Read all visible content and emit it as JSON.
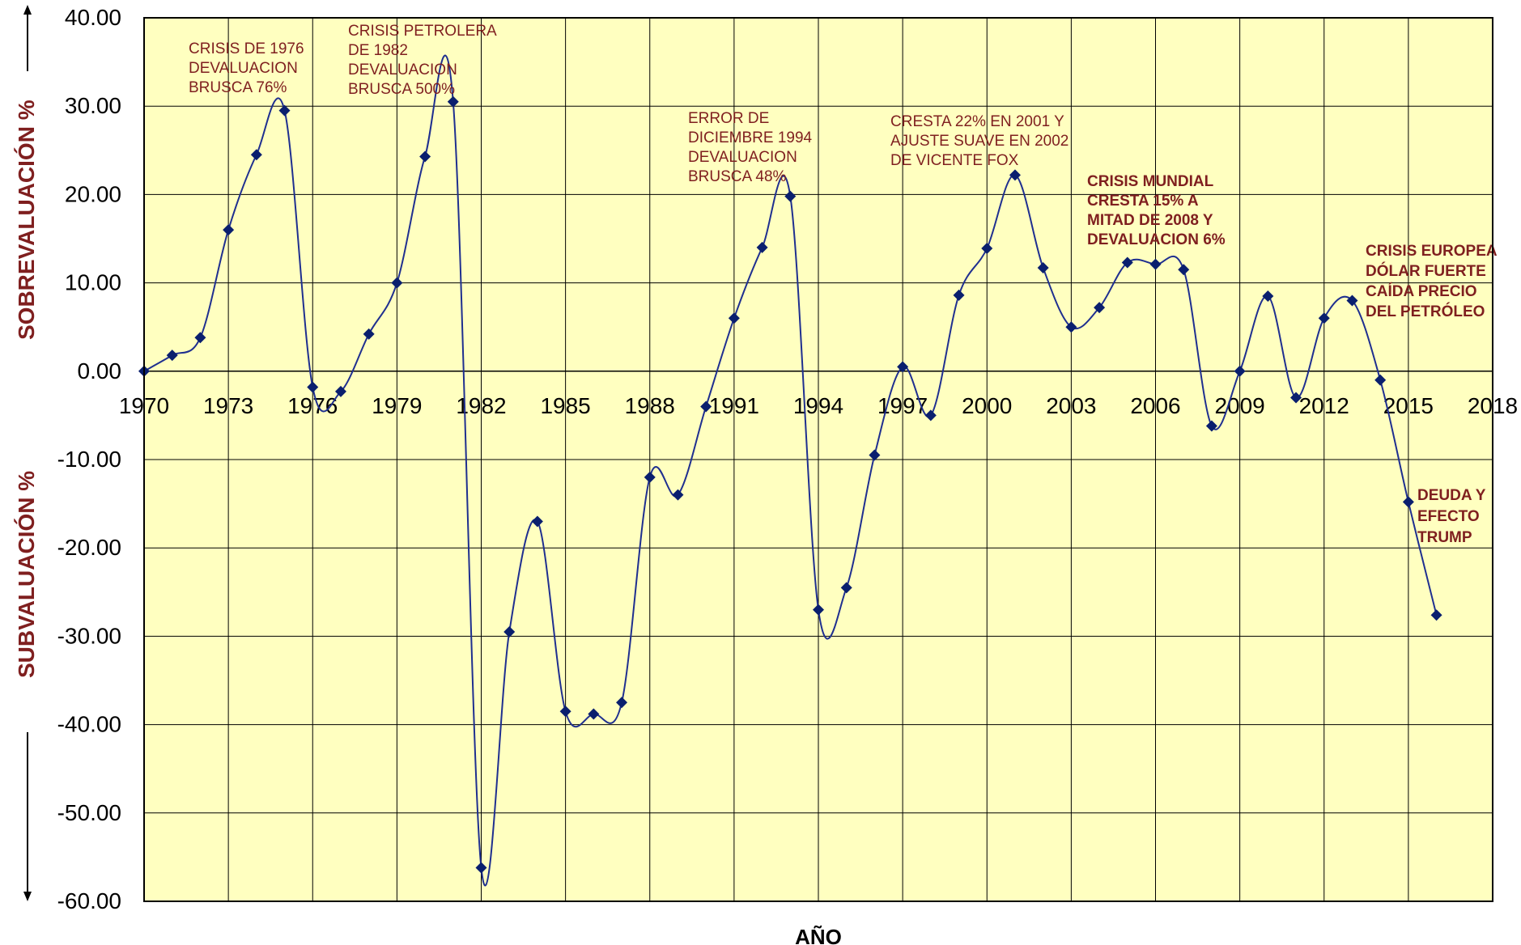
{
  "chart_data": {
    "type": "line",
    "xlabel": "AÑO",
    "ylabel_top": "SOBREVALUACIÓN %",
    "ylabel_bottom": "SUBVALUACIÓN %",
    "xlim": [
      1970,
      2018
    ],
    "ylim": [
      -60,
      40
    ],
    "x_ticks": [
      "1970",
      "1973",
      "1976",
      "1979",
      "1982",
      "1985",
      "1988",
      "1991",
      "1994",
      "1997",
      "2000",
      "2003",
      "2006",
      "2009",
      "2012",
      "2015",
      "2018"
    ],
    "y_ticks": [
      "40.00",
      "30.00",
      "20.00",
      "10.00",
      "0.00",
      "-10.00",
      "-20.00",
      "-30.00",
      "-40.00",
      "-50.00",
      "-60.00"
    ],
    "grid": true,
    "colors": {
      "plot_background": "#ffffc0",
      "line": "#1f2f8f",
      "marker": "#0a1f6e",
      "annotation": "#7f1f1f",
      "grid": "#000000"
    },
    "series": [
      {
        "x": [
          1970,
          1971,
          1972,
          1973,
          1974,
          1975,
          1976,
          1977,
          1978,
          1979,
          1980,
          1981,
          1982,
          1983,
          1984,
          1985,
          1986,
          1987,
          1988,
          1989,
          1990,
          1991,
          1992,
          1993,
          1994,
          1995,
          1996,
          1997,
          1998,
          1999,
          2000,
          2001,
          2002,
          2003,
          2004,
          2005,
          2006,
          2007,
          2008,
          2009,
          2010,
          2011,
          2012,
          2013,
          2014,
          2015,
          2016
        ],
        "values": [
          0.0,
          1.8,
          3.8,
          16.0,
          24.5,
          29.5,
          -1.8,
          -2.3,
          4.2,
          10.0,
          24.3,
          30.5,
          -56.2,
          -29.5,
          -17.0,
          -38.5,
          -38.8,
          -37.5,
          -12.0,
          -14.0,
          -4.0,
          6.0,
          14.0,
          19.8,
          -27.0,
          -24.5,
          -9.5,
          0.5,
          -5.0,
          8.6,
          13.9,
          22.2,
          11.7,
          5.0,
          7.2,
          12.3,
          12.1,
          11.5,
          -6.2,
          0.0,
          8.5,
          -3.0,
          6.0,
          8.0,
          -1.0,
          -14.8,
          -27.6
        ]
      }
    ],
    "annotations": [
      {
        "lines": [
          "CRISIS DE 1976",
          "DEVALUACION",
          "BRUSCA 76%"
        ],
        "bold": false
      },
      {
        "lines": [
          "CRISIS PETROLERA",
          "DE 1982",
          "DEVALUACION",
          "BRUSCA 500%"
        ],
        "bold": false
      },
      {
        "lines": [
          "ERROR DE",
          "DICIEMBRE 1994",
          "DEVALUACION",
          "BRUSCA  48%"
        ],
        "bold": false
      },
      {
        "lines": [
          "CRESTA 22% EN 2001 Y",
          "AJUSTE SUAVE EN 2002",
          "DE VICENTE  FOX"
        ],
        "bold": false
      },
      {
        "lines": [
          "CRISIS MUNDIAL",
          "CRESTA 15%   A",
          "MITAD DE 2008  Y",
          "DEVALUACION 6%"
        ],
        "bold": true
      },
      {
        "lines": [
          "CRISIS EUROPEA",
          "DÓLAR FUERTE",
          "CAÍDA PRECIO",
          "DEL PETRÓLEO"
        ],
        "bold": true
      },
      {
        "lines": [
          "DEUDA Y",
          "EFECTO",
          "TRUMP"
        ],
        "bold": true
      }
    ]
  }
}
